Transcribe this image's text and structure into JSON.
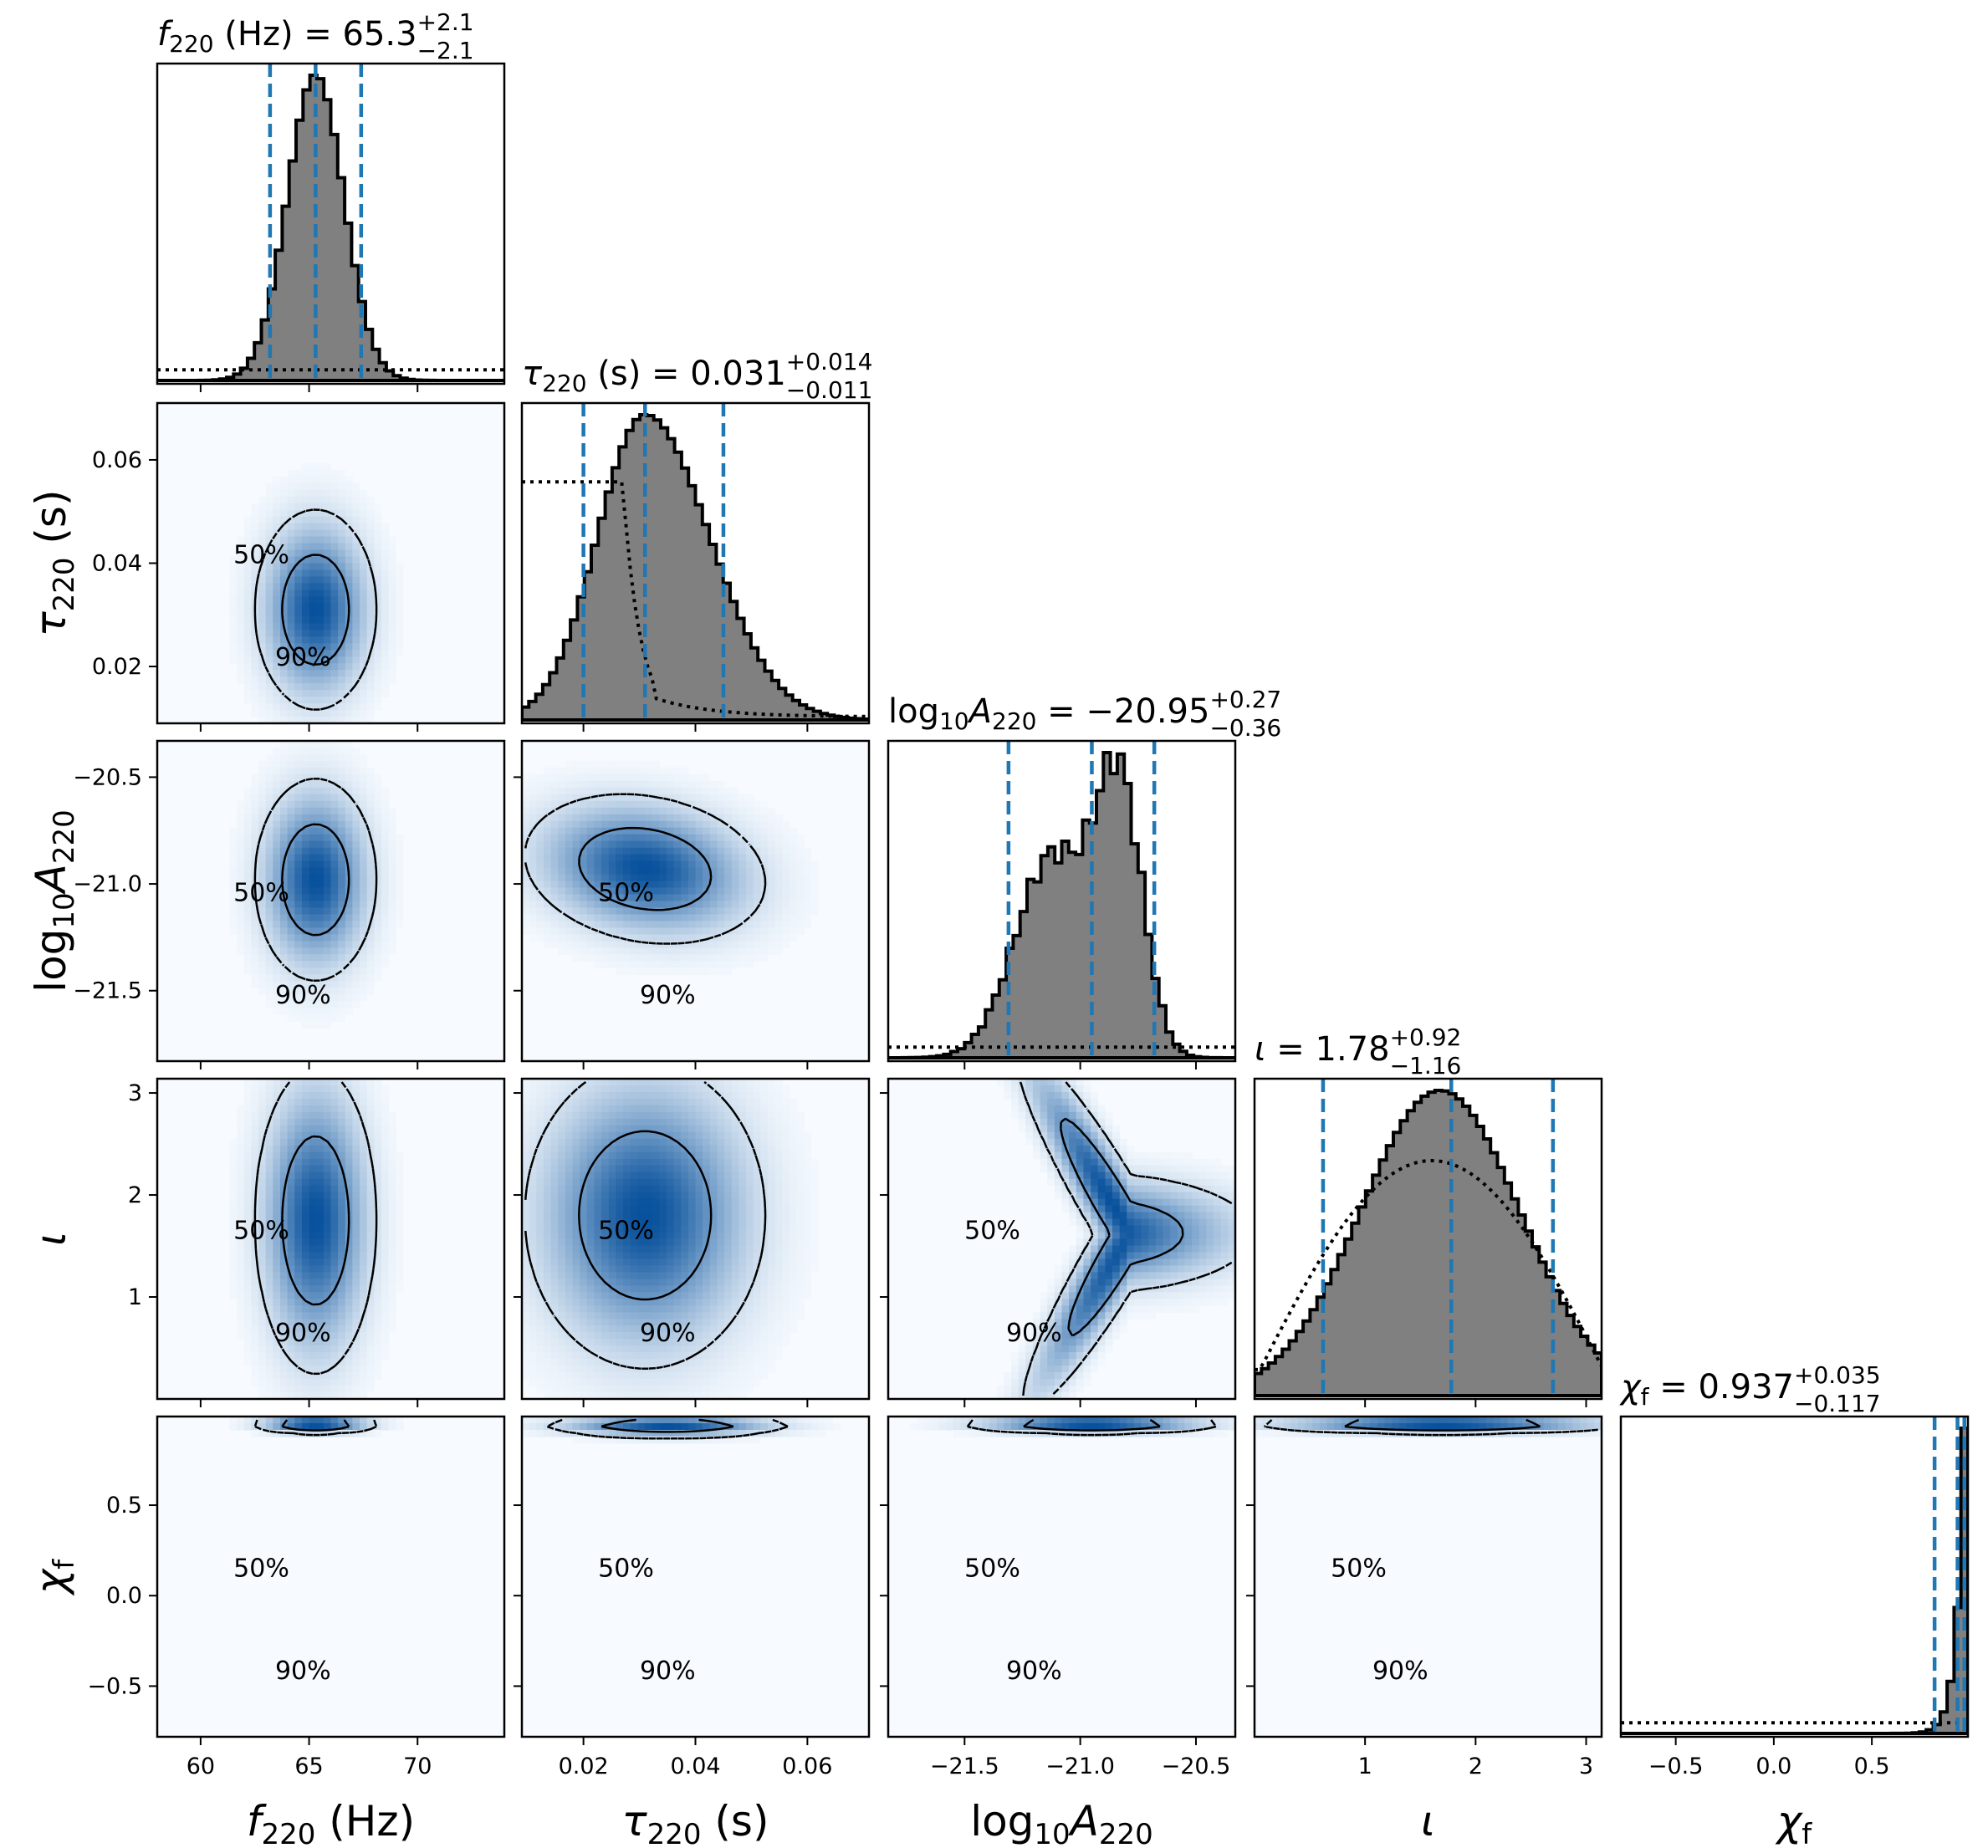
{
  "chart_data": {
    "type": "corner",
    "params": [
      {
        "key": "f220",
        "axis_label": "f220 (Hz)",
        "axis_parts": {
          "sym": "f",
          "sub": "220",
          "pre": "",
          "suf": " (Hz)",
          "italic": true
        },
        "title": {
          "pre": "",
          "sym": "f",
          "sub": "220",
          "rest": " (Hz) = 65.3",
          "plus": "+2.1",
          "minus": "−2.1"
        },
        "range": [
          58,
          74
        ],
        "ticks": [
          60,
          65,
          70
        ],
        "tick_labels": [
          "60",
          "65",
          "70"
        ],
        "median": 65.3,
        "lower": 63.2,
        "upper": 67.4,
        "dist": "gauss",
        "mu": 65.3,
        "sigma": 1.3,
        "prior": "flat"
      },
      {
        "key": "tau220",
        "axis_label": "τ220 (s)",
        "axis_parts": {
          "sym": "τ",
          "sub": "220",
          "pre": "",
          "suf": " (s)",
          "italic": true
        },
        "title": {
          "pre": "",
          "sym": "τ",
          "sub": "220",
          "rest": " (s) = 0.031",
          "plus": "+0.014",
          "minus": "−0.011"
        },
        "range": [
          0.009,
          0.071
        ],
        "ticks": [
          0.02,
          0.04,
          0.06
        ],
        "tick_labels": [
          "0.02",
          "0.04",
          "0.06"
        ],
        "median": 0.031,
        "lower": 0.02,
        "upper": 0.045,
        "dist": "skew",
        "mu": 0.031,
        "sigma_l": 0.0085,
        "sigma_r": 0.0115,
        "prior": "tau"
      },
      {
        "key": "logA",
        "axis_label": "log10A220",
        "axis_parts": {
          "sym": "A",
          "sub": "220",
          "pre": "log",
          "presub": "10",
          "suf": "",
          "italic": true
        },
        "title": {
          "pre": "log",
          "presub": "10",
          "sym": "A",
          "sub": "220",
          "rest": " = −20.95",
          "plus": "+0.27",
          "minus": "−0.36"
        },
        "range": [
          -21.83,
          -20.33
        ],
        "ticks": [
          -21.5,
          -21.0,
          -20.5
        ],
        "tick_labels": [
          "−21.5",
          "−21.0",
          "−20.5"
        ],
        "median": -20.95,
        "lower": -21.31,
        "upper": -20.68,
        "dist": "bimodal",
        "prior": "flat"
      },
      {
        "key": "iota",
        "axis_label": "ι",
        "axis_parts": {
          "sym": "ι",
          "sub": "",
          "pre": "",
          "suf": "",
          "italic": true
        },
        "title": {
          "pre": "",
          "sym": "ι",
          "sub": "",
          "rest": " = 1.78",
          "plus": "+0.92",
          "minus": "−1.16"
        },
        "range": [
          0.0,
          3.14
        ],
        "ticks": [
          1,
          2,
          3
        ],
        "tick_labels": [
          "1",
          "2",
          "3"
        ],
        "median": 1.78,
        "lower": 0.62,
        "upper": 2.7,
        "dist": "broad",
        "prior": "sine"
      },
      {
        "key": "chif",
        "axis_label": "χf",
        "axis_parts": {
          "sym": "χ",
          "sub": "f",
          "pre": "",
          "suf": "",
          "italic": true
        },
        "title": {
          "pre": "",
          "sym": "χ",
          "sub": "f",
          "rest": " = 0.937",
          "plus": "+0.035",
          "minus": "−0.117"
        },
        "range": [
          -0.78,
          0.99
        ],
        "ticks": [
          -0.5,
          0.0,
          0.5
        ],
        "tick_labels": [
          "−0.5",
          "0.0",
          "0.5"
        ],
        "median": 0.937,
        "lower": 0.82,
        "upper": 0.972,
        "dist": "edge",
        "prior": "flat"
      }
    ],
    "contour_levels": [
      "50%",
      "90%"
    ],
    "colors": {
      "hist_fill": "#808080",
      "hist_edge": "#000000",
      "quantile_line": "#1f77b4",
      "density_cmap_low": "#f7fbff",
      "density_cmap_high": "#08519c",
      "prior_line": "#000000"
    },
    "notes": {
      "quantile_style": "dashed",
      "prior_style": "dotted",
      "contour_90_style": "dashed",
      "contour_50_style": "solid"
    }
  }
}
